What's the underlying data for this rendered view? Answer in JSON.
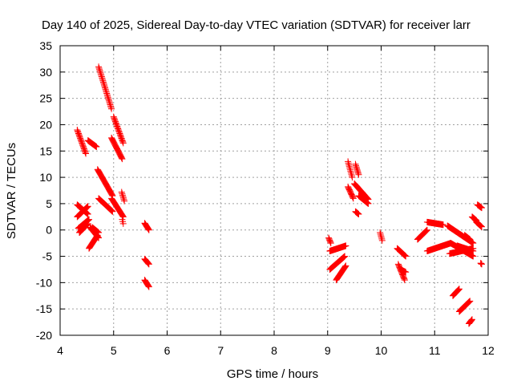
{
  "chart_data": {
    "type": "scatter",
    "title": "Day 140 of 2025, Sidereal Day-to-day VTEC variation (SDTVAR) for receiver larr",
    "xlabel": "GPS time / hours",
    "ylabel": "SDTVAR / TECUs",
    "xlim": [
      4,
      12
    ],
    "ylim": [
      -20,
      35
    ],
    "xticks": [
      "4",
      "5",
      "6",
      "7",
      "8",
      "9",
      "10",
      "11",
      "12"
    ],
    "yticks": [
      "-20",
      "-15",
      "-10",
      "-5",
      "0",
      "5",
      "10",
      "15",
      "20",
      "25",
      "30",
      "35"
    ],
    "grid": true,
    "marker": "plus",
    "color": "#ff0000",
    "segments": [
      {
        "x": [
          4.32,
          4.48
        ],
        "y": [
          19.0,
          14.5
        ]
      },
      {
        "x": [
          4.52,
          4.68
        ],
        "y": [
          17.0,
          15.8
        ]
      },
      {
        "x": [
          4.72,
          4.96
        ],
        "y": [
          31.0,
          23.0
        ]
      },
      {
        "x": [
          5.0,
          5.18
        ],
        "y": [
          21.5,
          16.5
        ]
      },
      {
        "x": [
          4.96,
          5.16
        ],
        "y": [
          17.5,
          13.5
        ]
      },
      {
        "x": [
          4.7,
          4.98
        ],
        "y": [
          11.5,
          6.5
        ]
      },
      {
        "x": [
          4.72,
          4.98
        ],
        "y": [
          6.0,
          3.5
        ]
      },
      {
        "x": [
          4.96,
          5.18
        ],
        "y": [
          6.0,
          2.5
        ]
      },
      {
        "x": [
          5.15,
          5.2
        ],
        "y": [
          7.2,
          5.5
        ]
      },
      {
        "x": [
          5.16,
          5.18
        ],
        "y": [
          2.0,
          1.2
        ]
      },
      {
        "x": [
          4.32,
          4.52
        ],
        "y": [
          4.8,
          3.0
        ]
      },
      {
        "x": [
          4.32,
          4.52
        ],
        "y": [
          2.5,
          4.5
        ]
      },
      {
        "x": [
          4.34,
          4.54
        ],
        "y": [
          0.3,
          2.0
        ]
      },
      {
        "x": [
          4.36,
          4.52
        ],
        "y": [
          -0.5,
          1.2
        ]
      },
      {
        "x": [
          4.54,
          4.7
        ],
        "y": [
          -3.5,
          -1.0
        ]
      },
      {
        "x": [
          4.56,
          4.72
        ],
        "y": [
          0.5,
          -1.5
        ]
      },
      {
        "x": [
          4.6,
          4.72
        ],
        "y": [
          0.5,
          -0.5
        ]
      },
      {
        "x": [
          5.58,
          5.66
        ],
        "y": [
          1.3,
          0.0
        ]
      },
      {
        "x": [
          5.58,
          5.66
        ],
        "y": [
          -5.5,
          -6.5
        ]
      },
      {
        "x": [
          5.58,
          5.66
        ],
        "y": [
          -9.5,
          -10.8
        ]
      },
      {
        "x": [
          9.02,
          9.06
        ],
        "y": [
          -1.5,
          -2.5
        ]
      },
      {
        "x": [
          9.04,
          9.34
        ],
        "y": [
          -4.0,
          -3.0
        ]
      },
      {
        "x": [
          9.04,
          9.32
        ],
        "y": [
          -7.5,
          -5.0
        ]
      },
      {
        "x": [
          9.16,
          9.34
        ],
        "y": [
          -9.5,
          -6.8
        ]
      },
      {
        "x": [
          9.38,
          9.46
        ],
        "y": [
          13.0,
          10.0
        ]
      },
      {
        "x": [
          9.38,
          9.48
        ],
        "y": [
          8.2,
          6.0
        ]
      },
      {
        "x": [
          9.52,
          9.58
        ],
        "y": [
          12.5,
          10.5
        ]
      },
      {
        "x": [
          9.5,
          9.76
        ],
        "y": [
          8.8,
          5.8
        ]
      },
      {
        "x": [
          9.58,
          9.76
        ],
        "y": [
          6.5,
          5.0
        ]
      },
      {
        "x": [
          9.52,
          9.58
        ],
        "y": [
          3.5,
          3.0
        ]
      },
      {
        "x": [
          9.98,
          10.02
        ],
        "y": [
          -0.5,
          -2.0
        ]
      },
      {
        "x": [
          10.3,
          10.46
        ],
        "y": [
          -3.5,
          -5.0
        ]
      },
      {
        "x": [
          10.32,
          10.44
        ],
        "y": [
          -6.5,
          -9.5
        ]
      },
      {
        "x": [
          10.36,
          10.46
        ],
        "y": [
          -7.5,
          -8.0
        ]
      },
      {
        "x": [
          10.68,
          10.86
        ],
        "y": [
          -1.8,
          0.0
        ]
      },
      {
        "x": [
          10.86,
          11.16
        ],
        "y": [
          1.5,
          1.0
        ]
      },
      {
        "x": [
          10.86,
          11.3
        ],
        "y": [
          -4.0,
          -2.5
        ]
      },
      {
        "x": [
          11.24,
          11.72
        ],
        "y": [
          0.8,
          -2.5
        ]
      },
      {
        "x": [
          11.28,
          11.72
        ],
        "y": [
          -4.5,
          -3.5
        ]
      },
      {
        "x": [
          11.3,
          11.72
        ],
        "y": [
          -2.5,
          -5.0
        ]
      },
      {
        "x": [
          11.42,
          11.72
        ],
        "y": [
          -3.0,
          -4.0
        ]
      },
      {
        "x": [
          11.56,
          11.66
        ],
        "y": [
          -1.0,
          -1.8
        ]
      },
      {
        "x": [
          11.7,
          11.78
        ],
        "y": [
          2.5,
          1.8
        ]
      },
      {
        "x": [
          11.8,
          11.88
        ],
        "y": [
          4.8,
          4.2
        ]
      },
      {
        "x": [
          11.78,
          11.88
        ],
        "y": [
          1.5,
          0.6
        ]
      },
      {
        "x": [
          11.86,
          11.88
        ],
        "y": [
          -6.3,
          -6.5
        ]
      },
      {
        "x": [
          11.34,
          11.46
        ],
        "y": [
          -12.5,
          -11.2
        ]
      },
      {
        "x": [
          11.46,
          11.66
        ],
        "y": [
          -15.5,
          -13.5
        ]
      },
      {
        "x": [
          11.64,
          11.7
        ],
        "y": [
          -17.8,
          -17.0
        ]
      }
    ]
  }
}
